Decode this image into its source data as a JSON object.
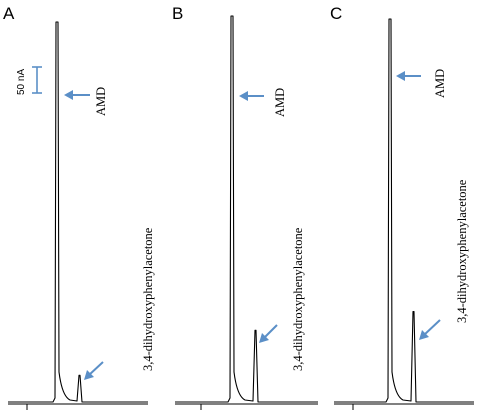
{
  "chart_data": [
    {
      "type": "line",
      "panel": "A",
      "peaks": [
        {
          "label": "AMD",
          "height": 1.0
        },
        {
          "label": "3,4-dihydroxyphenylacetone",
          "height": 0.075
        }
      ],
      "scale_bar_label": "50 nA"
    },
    {
      "type": "line",
      "panel": "B",
      "peaks": [
        {
          "label": "AMD",
          "height": 1.0
        },
        {
          "label": "3,4-dihydroxyphenylacetone",
          "height": 0.19
        }
      ]
    },
    {
      "type": "line",
      "panel": "C",
      "peaks": [
        {
          "label": "AMD",
          "height": 1.0
        },
        {
          "label": "3,4-dihydroxyphenylacetone",
          "height": 0.24
        }
      ]
    }
  ],
  "colors": {
    "arrow": "#5b8fc7",
    "trace": "#000000"
  }
}
